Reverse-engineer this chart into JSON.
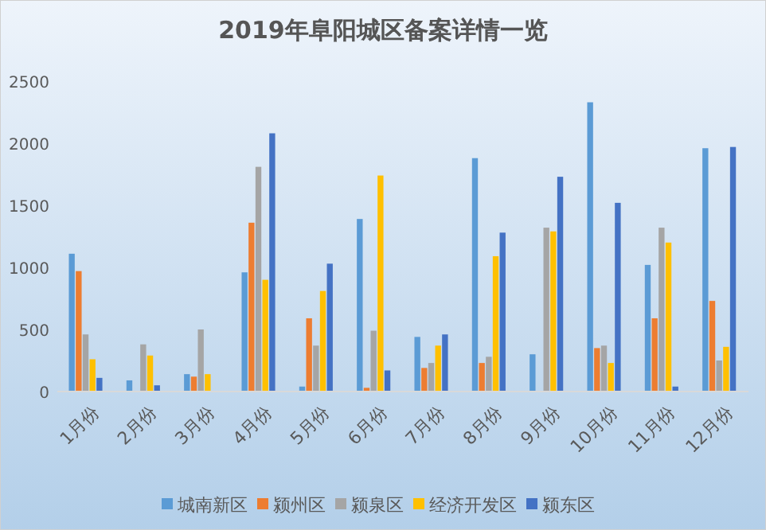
{
  "chart_data": {
    "type": "bar",
    "title": "2019年阜阳城区备案详情一览",
    "categories": [
      "1月份",
      "2月份",
      "3月份",
      "4月份",
      "5月份",
      "6月份",
      "7月份",
      "8月份",
      "9月份",
      "10月份",
      "11月份",
      "12月份"
    ],
    "series": [
      {
        "name": "城南新区",
        "color": "#5b9bd5",
        "values": [
          1110,
          90,
          140,
          960,
          40,
          1390,
          440,
          1880,
          300,
          2330,
          1020,
          1960
        ]
      },
      {
        "name": "颍州区",
        "color": "#ed7d31",
        "values": [
          970,
          0,
          120,
          1360,
          590,
          30,
          190,
          230,
          0,
          350,
          590,
          730
        ]
      },
      {
        "name": "颍泉区",
        "color": "#a5a5a5",
        "values": [
          460,
          380,
          500,
          1810,
          370,
          490,
          230,
          280,
          1320,
          370,
          1320,
          250
        ]
      },
      {
        "name": "经济开发区",
        "color": "#ffc000",
        "values": [
          260,
          290,
          140,
          900,
          810,
          1740,
          370,
          1090,
          1290,
          230,
          1200,
          360
        ]
      },
      {
        "name": "颍东区",
        "color": "#4472c4",
        "values": [
          110,
          50,
          0,
          2080,
          1030,
          170,
          460,
          1280,
          1730,
          1520,
          40,
          1970
        ]
      }
    ],
    "ylim": [
      0,
      2500
    ],
    "yticks": [
      0,
      500,
      1000,
      1500,
      2000,
      2500
    ],
    "grid": false,
    "legend": "bottom"
  }
}
